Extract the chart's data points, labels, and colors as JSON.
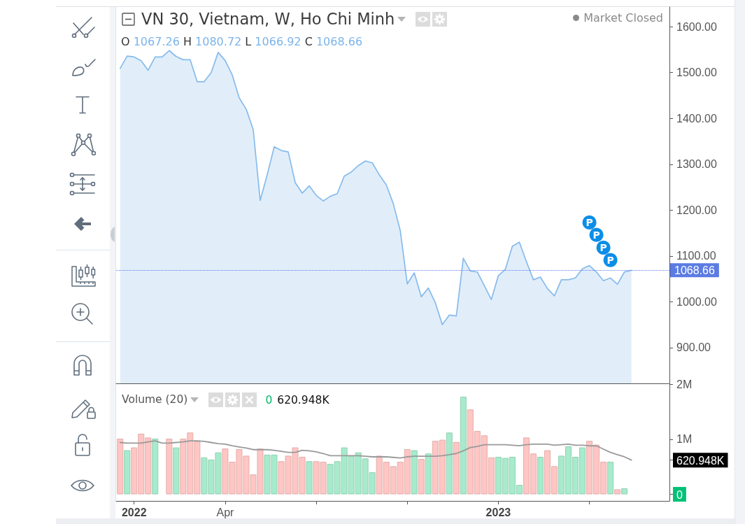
{
  "chart_data": [
    {
      "type": "area",
      "title": "VN 30, Vietnam, W, Ho Chi Minh",
      "subtitle": "O 1067.26 H 1080.72 L 1066.92 C 1068.66",
      "annotations": [
        "Market Closed",
        {
          "text": "P",
          "x": "2023-04-02",
          "y": 1173
        },
        {
          "text": "P",
          "x": "2023-04-09",
          "y": 1146
        },
        {
          "text": "P",
          "x": "2023-04-16",
          "y": 1118
        },
        {
          "text": "P",
          "x": "2023-04-23",
          "y": 1091
        }
      ],
      "x": [
        "2021-12-19",
        "2021-12-26",
        "2022-01-02",
        "2022-01-09",
        "2022-01-16",
        "2022-01-23",
        "2022-01-30",
        "2022-02-06",
        "2022-02-13",
        "2022-02-20",
        "2022-02-27",
        "2022-03-06",
        "2022-03-13",
        "2022-03-20",
        "2022-03-27",
        "2022-04-03",
        "2022-04-10",
        "2022-04-17",
        "2022-04-24",
        "2022-05-01",
        "2022-05-08",
        "2022-05-15",
        "2022-05-22",
        "2022-05-29",
        "2022-06-05",
        "2022-06-12",
        "2022-06-19",
        "2022-06-26",
        "2022-07-03",
        "2022-07-10",
        "2022-07-17",
        "2022-07-24",
        "2022-07-31",
        "2022-08-07",
        "2022-08-14",
        "2022-08-21",
        "2022-08-28",
        "2022-09-04",
        "2022-09-11",
        "2022-09-18",
        "2022-09-25",
        "2022-10-02",
        "2022-10-09",
        "2022-10-16",
        "2022-10-23",
        "2022-10-30",
        "2022-11-06",
        "2022-11-13",
        "2022-11-20",
        "2022-11-27",
        "2022-12-04",
        "2022-12-11",
        "2022-12-18",
        "2022-12-25",
        "2023-01-01",
        "2023-01-08",
        "2023-01-15",
        "2023-01-22",
        "2023-01-29",
        "2023-02-05",
        "2023-02-12",
        "2023-02-19",
        "2023-02-26",
        "2023-03-05",
        "2023-03-12",
        "2023-03-19",
        "2023-03-26",
        "2023-04-02",
        "2023-04-09",
        "2023-04-16",
        "2023-04-23",
        "2023-04-30",
        "2023-05-07",
        "2023-05-14"
      ],
      "values": [
        1509,
        1536,
        1534,
        1526,
        1505,
        1534,
        1534,
        1548,
        1535,
        1528,
        1528,
        1480,
        1480,
        1500,
        1544,
        1526,
        1495,
        1445,
        1420,
        1376,
        1221,
        1277,
        1338,
        1330,
        1327,
        1260,
        1237,
        1253,
        1232,
        1220,
        1230,
        1236,
        1274,
        1283,
        1297,
        1307,
        1303,
        1277,
        1255,
        1214,
        1155,
        1039,
        1063,
        1011,
        1030,
        998,
        950,
        971,
        969,
        1095,
        1067,
        1065,
        1035,
        1005,
        1057,
        1071,
        1121,
        1130,
        1088,
        1048,
        1054,
        1029,
        1013,
        1048,
        1048,
        1052,
        1072,
        1079,
        1065,
        1046,
        1052,
        1038,
        1065,
        1068.66
      ],
      "color": "#86bbec",
      "xlim": [
        "2021-12-15",
        "2023-06-21"
      ],
      "ylim": [
        822,
        1643
      ],
      "yticks": [
        {
          "value": 900,
          "label": "900.00"
        },
        {
          "value": 1000,
          "label": "1000.00"
        },
        {
          "value": 1100,
          "label": "1100.00"
        },
        {
          "value": 1200,
          "label": "1200.00"
        },
        {
          "value": 1300,
          "label": "1300.00"
        },
        {
          "value": 1400,
          "label": "1400.00"
        },
        {
          "value": 1500,
          "label": "1500.00"
        },
        {
          "value": 1600,
          "label": "1600.00"
        }
      ],
      "tick_labels": "y",
      "ref_lines": [
        {
          "axis": "y",
          "value": 1068.66,
          "label": "1068.66",
          "color": "#5b7be3",
          "line_style": "dotted"
        }
      ]
    },
    {
      "type": "bar",
      "title": "Volume (20)",
      "annotations": [
        "0",
        "620.948K"
      ],
      "x": [
        "2021-12-19",
        "2021-12-26",
        "2022-01-02",
        "2022-01-09",
        "2022-01-16",
        "2022-01-23",
        "2022-01-30",
        "2022-02-06",
        "2022-02-13",
        "2022-02-20",
        "2022-02-27",
        "2022-03-06",
        "2022-03-13",
        "2022-03-20",
        "2022-03-27",
        "2022-04-03",
        "2022-04-10",
        "2022-04-17",
        "2022-04-24",
        "2022-05-01",
        "2022-05-08",
        "2022-05-15",
        "2022-05-22",
        "2022-05-29",
        "2022-06-05",
        "2022-06-12",
        "2022-06-19",
        "2022-06-26",
        "2022-07-03",
        "2022-07-10",
        "2022-07-17",
        "2022-07-24",
        "2022-07-31",
        "2022-08-07",
        "2022-08-14",
        "2022-08-21",
        "2022-08-28",
        "2022-09-04",
        "2022-09-11",
        "2022-09-18",
        "2022-09-25",
        "2022-10-02",
        "2022-10-09",
        "2022-10-16",
        "2022-10-23",
        "2022-10-30",
        "2022-11-06",
        "2022-11-13",
        "2022-11-20",
        "2022-11-27",
        "2022-12-04",
        "2022-12-11",
        "2022-12-18",
        "2022-12-25",
        "2023-01-01",
        "2023-01-08",
        "2023-01-15",
        "2023-01-22",
        "2023-01-29",
        "2023-02-05",
        "2023-02-12",
        "2023-02-19",
        "2023-02-26",
        "2023-03-05",
        "2023-03-12",
        "2023-03-19",
        "2023-03-26",
        "2023-04-02",
        "2023-04-09",
        "2023-04-16",
        "2023-04-23",
        "2023-04-30",
        "2023-05-07",
        "2023-05-14"
      ],
      "series": [
        {
          "values": [
            1010000,
            800000,
            850000,
            1100000,
            1030000,
            1010000,
            0,
            1010000,
            850000,
            1010000,
            1120000,
            960000,
            670000,
            630000,
            760000,
            830000,
            590000,
            820000,
            700000,
            360000,
            830000,
            720000,
            720000,
            600000,
            700000,
            850000,
            680000,
            600000,
            600000,
            590000,
            550000,
            600000,
            850000,
            700000,
            760000,
            650000,
            400000,
            700000,
            590000,
            510000,
            590000,
            820000,
            800000,
            640000,
            740000,
            970000,
            990000,
            1120000,
            950000,
            1770000,
            1540000,
            1150000,
            1070000,
            670000,
            680000,
            660000,
            680000,
            170000,
            1030000,
            740000,
            680000,
            800000,
            510000,
            700000,
            870000,
            680000,
            850000,
            970000,
            900000,
            590000,
            590000,
            90000,
            110000,
            0
          ],
          "colors": [
            "#ffc6c4",
            "#a7ebcc",
            "#ffc6c4",
            "#ffc6c4",
            "#ffc6c4",
            "#a7ebcc",
            "#a7ebcc",
            "#ffc6c4",
            "#a7ebcc",
            "#ffc6c4",
            "#ffc6c4",
            "#ffc6c4",
            "#a7ebcc",
            "#a7ebcc",
            "#a7ebcc",
            "#ffc6c4",
            "#ffc6c4",
            "#ffc6c4",
            "#ffc6c4",
            "#ffc6c4",
            "#ffc6c4",
            "#a7ebcc",
            "#a7ebcc",
            "#ffc6c4",
            "#ffc6c4",
            "#ffc6c4",
            "#ffc6c4",
            "#a7ebcc",
            "#ffc6c4",
            "#ffc6c4",
            "#a7ebcc",
            "#a7ebcc",
            "#a7ebcc",
            "#a7ebcc",
            "#a7ebcc",
            "#a7ebcc",
            "#a7ebcc",
            "#ffc6c4",
            "#ffc6c4",
            "#ffc6c4",
            "#ffc6c4",
            "#ffc6c4",
            "#a7ebcc",
            "#ffc6c4",
            "#a7ebcc",
            "#ffc6c4",
            "#ffc6c4",
            "#a7ebcc",
            "#ffc6c4",
            "#a7ebcc",
            "#ffc6c4",
            "#ffc6c4",
            "#ffc6c4",
            "#ffc6c4",
            "#a7ebcc",
            "#a7ebcc",
            "#a7ebcc",
            "#a7ebcc",
            "#ffc6c4",
            "#ffc6c4",
            "#a7ebcc",
            "#ffc6c4",
            "#ffc6c4",
            "#a7ebcc",
            "#a7ebcc",
            "#a7ebcc",
            "#a7ebcc",
            "#ffc6c4",
            "#ffc6c4",
            "#ffc6c4",
            "#a7ebcc",
            "#ffc6c4",
            "#a7ebcc",
            "#a7ebcc"
          ]
        },
        {
          "type": "line",
          "color": "#9a9a9a",
          "values": [
            940000,
            930000,
            930000,
            930000,
            950000,
            970000,
            930000,
            930000,
            940000,
            950000,
            970000,
            970000,
            960000,
            940000,
            920000,
            910000,
            880000,
            860000,
            840000,
            810000,
            810000,
            810000,
            800000,
            780000,
            760000,
            760000,
            800000,
            790000,
            770000,
            740000,
            700000,
            700000,
            700000,
            700000,
            700000,
            690000,
            680000,
            680000,
            680000,
            670000,
            660000,
            680000,
            690000,
            690000,
            690000,
            690000,
            700000,
            720000,
            740000,
            790000,
            850000,
            870000,
            900000,
            900000,
            900000,
            900000,
            890000,
            880000,
            900000,
            910000,
            910000,
            910000,
            890000,
            900000,
            910000,
            890000,
            890000,
            880000,
            880000,
            820000,
            760000,
            720000,
            680000,
            620948
          ]
        }
      ],
      "xlim": [
        "2021-12-15",
        "2023-06-21"
      ],
      "xticks": [
        {
          "value": "2022-01-02",
          "label": "2022"
        },
        {
          "value": "2022-04-03",
          "label": "Apr"
        },
        {
          "value": "2022-07-03",
          "label": null
        },
        {
          "value": "2022-10-02",
          "label": null
        },
        {
          "value": "2023-01-01",
          "label": "2023"
        },
        {
          "value": "2023-04-02",
          "label": null
        }
      ],
      "ylim": [
        -120000,
        2000000
      ],
      "yticks": [
        0,
        {
          "value": 620948,
          "label": "620.948K"
        },
        {
          "value": 1000000,
          "label": "1M"
        },
        {
          "value": 2000000,
          "label": "2M"
        }
      ]
    }
  ]
}
